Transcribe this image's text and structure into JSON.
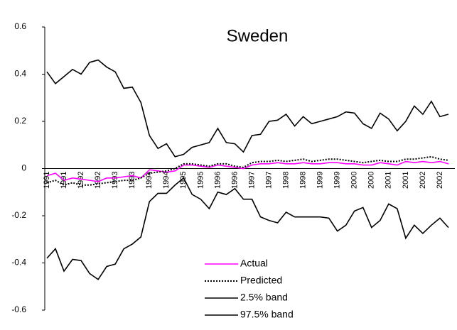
{
  "chart_data": {
    "type": "line",
    "title": "Sweden",
    "categories": [
      "1991",
      null,
      "1991",
      null,
      "1992",
      null,
      "1992",
      null,
      "1993",
      null,
      "1993",
      null,
      "1994",
      null,
      "1994",
      null,
      "1995",
      null,
      "1995",
      null,
      "1996",
      null,
      "1996",
      null,
      "1997",
      null,
      "1997",
      null,
      "1998",
      null,
      "1998",
      null,
      "1999",
      null,
      "1999",
      null,
      "2000",
      null,
      "2000",
      null,
      "2001",
      null,
      "2001",
      null,
      "2002",
      null,
      "2002",
      null
    ],
    "ylim": [
      -0.6,
      0.6
    ],
    "yticks": [
      -0.6,
      -0.4,
      -0.2,
      0,
      0.2,
      0.4,
      0.6
    ],
    "series": [
      {
        "name": "Actual",
        "color": "#ff00ff",
        "line_style": "solid",
        "values": [
          -0.03,
          -0.02,
          -0.05,
          -0.04,
          -0.045,
          -0.05,
          -0.055,
          -0.04,
          -0.04,
          -0.035,
          -0.03,
          -0.04,
          -0.005,
          -0.01,
          -0.015,
          -0.01,
          0.015,
          0.015,
          0.01,
          0.005,
          0.015,
          0.01,
          0.005,
          0.0,
          0.015,
          0.02,
          0.02,
          0.025,
          0.02,
          0.02,
          0.025,
          0.02,
          0.02,
          0.025,
          0.025,
          0.02,
          0.02,
          0.015,
          0.015,
          0.025,
          0.02,
          0.015,
          0.03,
          0.025,
          0.03,
          0.025,
          0.03,
          0.02
        ]
      },
      {
        "name": "Predicted",
        "color": "#000000",
        "line_style": "dotted",
        "values": [
          -0.06,
          -0.05,
          -0.07,
          -0.06,
          -0.07,
          -0.07,
          -0.065,
          -0.06,
          -0.055,
          -0.05,
          -0.05,
          -0.04,
          -0.02,
          -0.015,
          -0.01,
          0.0,
          0.02,
          0.02,
          0.015,
          0.01,
          0.02,
          0.02,
          0.01,
          0.005,
          0.025,
          0.03,
          0.03,
          0.035,
          0.03,
          0.035,
          0.04,
          0.03,
          0.035,
          0.04,
          0.04,
          0.035,
          0.03,
          0.025,
          0.03,
          0.035,
          0.03,
          0.03,
          0.04,
          0.04,
          0.045,
          0.05,
          0.04,
          0.035
        ]
      },
      {
        "name": "2.5% band",
        "color": "#000000",
        "line_style": "solid",
        "values": [
          -0.38,
          -0.34,
          -0.435,
          -0.385,
          -0.39,
          -0.445,
          -0.47,
          -0.415,
          -0.405,
          -0.34,
          -0.32,
          -0.29,
          -0.14,
          -0.105,
          -0.105,
          -0.07,
          -0.04,
          -0.11,
          -0.13,
          -0.17,
          -0.1,
          -0.11,
          -0.085,
          -0.13,
          -0.13,
          -0.205,
          -0.22,
          -0.23,
          -0.185,
          -0.205,
          -0.205,
          -0.205,
          -0.205,
          -0.21,
          -0.265,
          -0.24,
          -0.18,
          -0.165,
          -0.25,
          -0.22,
          -0.15,
          -0.17,
          -0.295,
          -0.24,
          -0.275,
          -0.24,
          -0.21,
          -0.25
        ]
      },
      {
        "name": "97.5% band",
        "color": "#000000",
        "line_style": "solid",
        "values": [
          0.41,
          0.36,
          0.39,
          0.42,
          0.4,
          0.45,
          0.46,
          0.43,
          0.41,
          0.34,
          0.345,
          0.28,
          0.14,
          0.085,
          0.105,
          0.05,
          0.06,
          0.09,
          0.1,
          0.11,
          0.17,
          0.11,
          0.105,
          0.07,
          0.14,
          0.145,
          0.2,
          0.205,
          0.23,
          0.18,
          0.22,
          0.19,
          0.2,
          0.21,
          0.22,
          0.24,
          0.235,
          0.19,
          0.17,
          0.235,
          0.21,
          0.16,
          0.2,
          0.265,
          0.23,
          0.285,
          0.22,
          0.23
        ]
      }
    ]
  }
}
